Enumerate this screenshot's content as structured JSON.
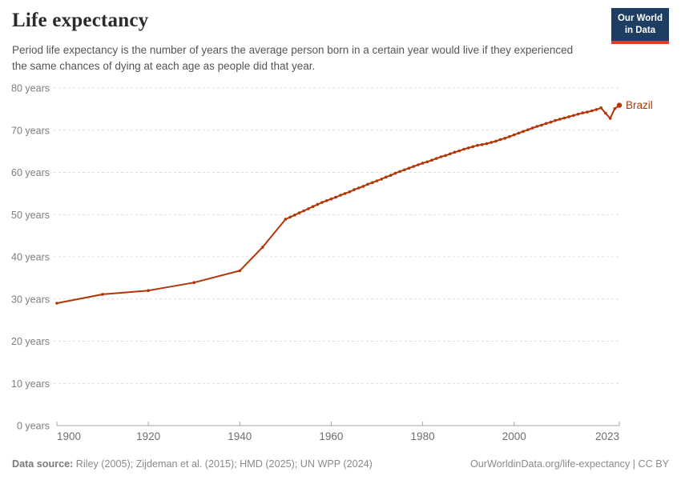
{
  "header": {
    "title": "Life expectancy",
    "subtitle": "Period life expectancy is the number of years the average person born in a certain year would live if they experienced the same chances of dying at each age as people did that year.",
    "logo": {
      "line1": "Our World",
      "line2": "in Data"
    }
  },
  "colors": {
    "series": "#b13507",
    "gridline": "#dcdcdc",
    "axis": "#a6a6a6",
    "logo_bg": "#1d3d63",
    "logo_stripe": "#dc3c29"
  },
  "chart_data": {
    "type": "line",
    "title": "Life expectancy",
    "subtitle": "Period life expectancy is the number of years the average person born in a certain year would live if they experienced the same chances of dying at each age as people did that year.",
    "xlabel": "",
    "ylabel": "",
    "xlim": [
      1900,
      2023
    ],
    "ylim": [
      0,
      80
    ],
    "grid": "dashed-horizontal",
    "legend_position": "end-of-line-label",
    "x_ticks": [
      1900,
      1920,
      1940,
      1960,
      1980,
      2000,
      2023
    ],
    "y_ticks": [
      0,
      10,
      20,
      30,
      40,
      50,
      60,
      70,
      80
    ],
    "y_tick_suffix": " years",
    "series": [
      {
        "name": "Brazil",
        "color": "#b13507",
        "points": [
          [
            1900,
            29.0
          ],
          [
            1910,
            31.1
          ],
          [
            1920,
            32.0
          ],
          [
            1930,
            33.9
          ],
          [
            1940,
            36.7
          ],
          [
            1945,
            42.3
          ],
          [
            1950,
            48.9
          ],
          [
            1951,
            49.4
          ],
          [
            1952,
            49.9
          ],
          [
            1953,
            50.4
          ],
          [
            1954,
            50.9
          ],
          [
            1955,
            51.4
          ],
          [
            1956,
            51.9
          ],
          [
            1957,
            52.4
          ],
          [
            1958,
            52.9
          ],
          [
            1959,
            53.3
          ],
          [
            1960,
            53.7
          ],
          [
            1961,
            54.1
          ],
          [
            1962,
            54.6
          ],
          [
            1963,
            55.0
          ],
          [
            1964,
            55.4
          ],
          [
            1965,
            55.9
          ],
          [
            1966,
            56.3
          ],
          [
            1967,
            56.7
          ],
          [
            1968,
            57.2
          ],
          [
            1969,
            57.6
          ],
          [
            1970,
            58.0
          ],
          [
            1971,
            58.4
          ],
          [
            1972,
            58.9
          ],
          [
            1973,
            59.3
          ],
          [
            1974,
            59.8
          ],
          [
            1975,
            60.2
          ],
          [
            1976,
            60.6
          ],
          [
            1977,
            61.0
          ],
          [
            1978,
            61.4
          ],
          [
            1979,
            61.8
          ],
          [
            1980,
            62.2
          ],
          [
            1981,
            62.5
          ],
          [
            1982,
            62.9
          ],
          [
            1983,
            63.3
          ],
          [
            1984,
            63.7
          ],
          [
            1985,
            64.0
          ],
          [
            1986,
            64.4
          ],
          [
            1987,
            64.8
          ],
          [
            1988,
            65.1
          ],
          [
            1989,
            65.5
          ],
          [
            1990,
            65.8
          ],
          [
            1991,
            66.1
          ],
          [
            1992,
            66.4
          ],
          [
            1993,
            66.6
          ],
          [
            1994,
            66.8
          ],
          [
            1995,
            67.1
          ],
          [
            1996,
            67.4
          ],
          [
            1997,
            67.8
          ],
          [
            1998,
            68.1
          ],
          [
            1999,
            68.5
          ],
          [
            2000,
            68.9
          ],
          [
            2001,
            69.3
          ],
          [
            2002,
            69.7
          ],
          [
            2003,
            70.1
          ],
          [
            2004,
            70.5
          ],
          [
            2005,
            70.9
          ],
          [
            2006,
            71.2
          ],
          [
            2007,
            71.6
          ],
          [
            2008,
            71.9
          ],
          [
            2009,
            72.3
          ],
          [
            2010,
            72.6
          ],
          [
            2011,
            72.9
          ],
          [
            2012,
            73.2
          ],
          [
            2013,
            73.5
          ],
          [
            2014,
            73.8
          ],
          [
            2015,
            74.1
          ],
          [
            2016,
            74.3
          ],
          [
            2017,
            74.6
          ],
          [
            2018,
            74.9
          ],
          [
            2019,
            75.3
          ],
          [
            2020,
            74.0
          ],
          [
            2021,
            72.8
          ],
          [
            2022,
            75.1
          ],
          [
            2023,
            75.9
          ]
        ]
      }
    ]
  },
  "footer": {
    "source_label": "Data source:",
    "source_text": " Riley (2005); Zijdeman et al. (2015); HMD (2025); UN WPP (2024)",
    "link_text": "OurWorldinData.org/life-expectancy | CC BY"
  }
}
